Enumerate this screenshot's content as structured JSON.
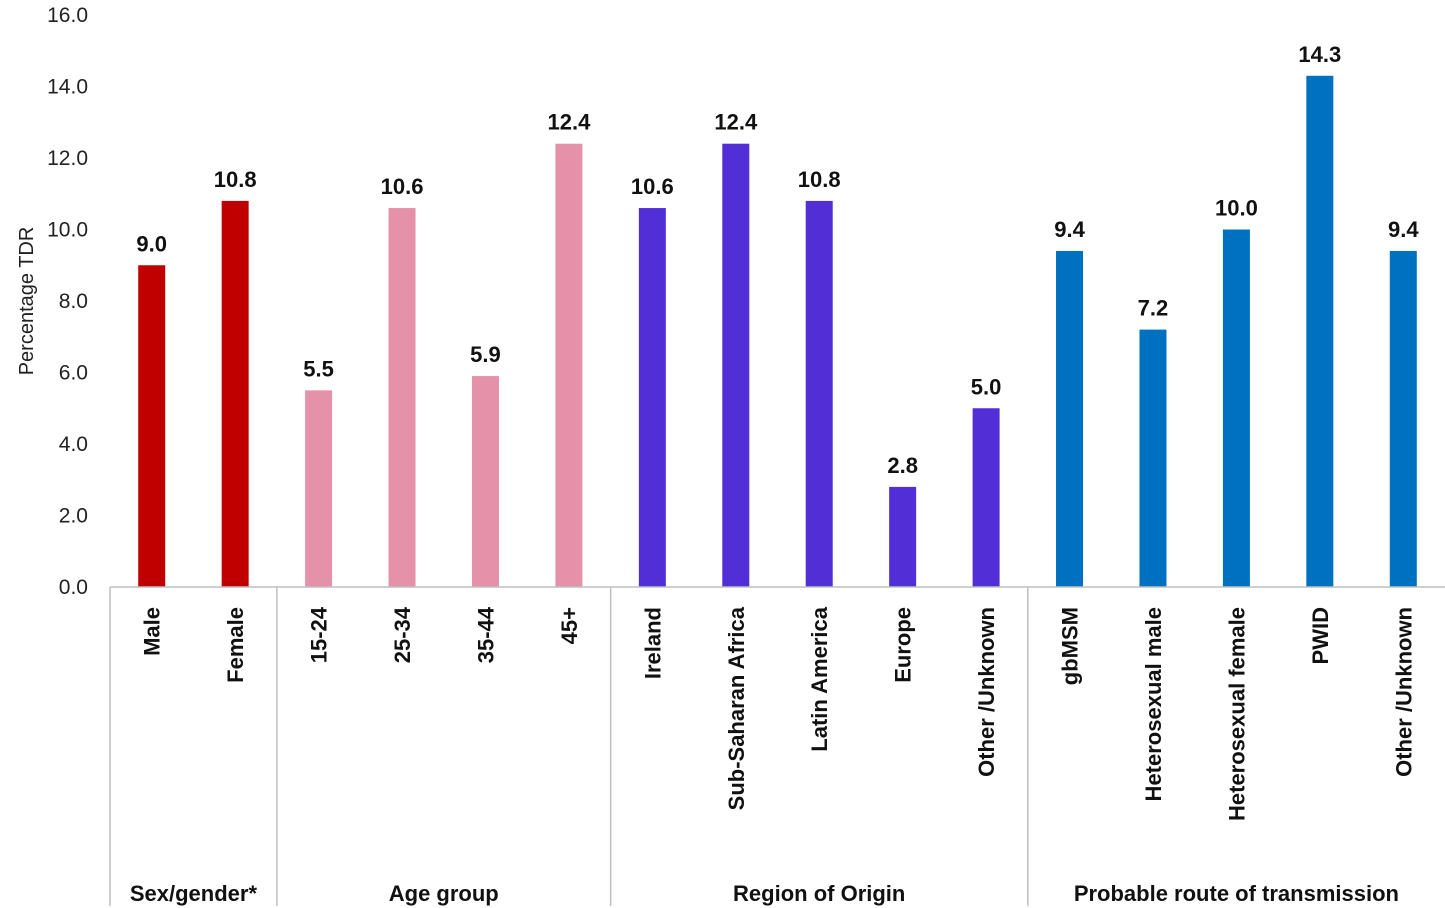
{
  "chart_data": {
    "type": "bar",
    "ylabel": "Percentage TDR",
    "ylim": [
      0,
      16
    ],
    "yticks": [
      "0.0",
      "2.0",
      "4.0",
      "6.0",
      "8.0",
      "10.0",
      "12.0",
      "14.0",
      "16.0"
    ],
    "grid": false,
    "groups": [
      {
        "label": "Sex/gender*",
        "color": "#c00000",
        "categories": [
          "Male",
          "Female"
        ],
        "values": [
          9.0,
          10.8
        ],
        "value_labels": [
          "9.0",
          "10.8"
        ]
      },
      {
        "label": "Age group",
        "color": "#e691aa",
        "categories": [
          "15-24",
          "25-34",
          "35-44",
          "45+"
        ],
        "values": [
          5.5,
          10.6,
          5.9,
          12.4
        ],
        "value_labels": [
          "5.5",
          "10.6",
          "5.9",
          "12.4"
        ]
      },
      {
        "label": "Region of Origin",
        "color": "#522ed6",
        "categories": [
          "Ireland",
          "Sub-Saharan Africa",
          "Latin America",
          "Europe",
          "Other /Unknown"
        ],
        "values": [
          10.6,
          12.4,
          10.8,
          2.8,
          5.0
        ],
        "value_labels": [
          "10.6",
          "12.4",
          "10.8",
          "2.8",
          "5.0"
        ]
      },
      {
        "label": "Probable route of transmission",
        "color": "#0070c0",
        "categories": [
          "gbMSM",
          "Heterosexual male",
          "Heterosexual female",
          "PWID",
          "Other /Unknown"
        ],
        "values": [
          9.4,
          7.2,
          10.0,
          14.3,
          9.4
        ],
        "value_labels": [
          "9.4",
          "7.2",
          "10.0",
          "14.3",
          "9.4"
        ]
      }
    ]
  }
}
